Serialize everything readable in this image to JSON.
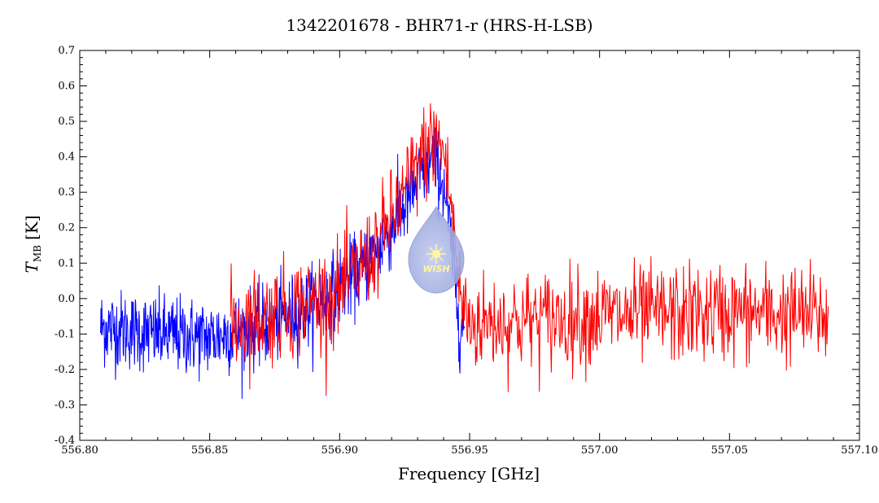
{
  "chart_data": {
    "type": "line",
    "title": "1342201678 - BHR71-r (HRS-H-LSB)",
    "xlabel": "Frequency [GHz]",
    "ylabel_main": "T",
    "ylabel_sub": "MB",
    "ylabel_unit": "[K]",
    "xlim": [
      556.8,
      557.1
    ],
    "ylim": [
      -0.4,
      0.7
    ],
    "xticks": [
      556.8,
      556.85,
      556.9,
      556.95,
      557.0,
      557.05,
      557.1
    ],
    "xtick_labels": [
      "556.80",
      "556.85",
      "556.90",
      "556.95",
      "557.00",
      "557.05",
      "557.10"
    ],
    "yticks": [
      -0.4,
      -0.3,
      -0.2,
      -0.1,
      0.0,
      0.1,
      0.2,
      0.3,
      0.4,
      0.5,
      0.6,
      0.7
    ],
    "ytick_labels": [
      "-0.4",
      "-0.3",
      "-0.2",
      "-0.1",
      "0.0",
      "0.1",
      "0.2",
      "0.3",
      "0.4",
      "0.5",
      "0.6",
      "0.7"
    ],
    "grid": false,
    "legend": "none",
    "logo_text": "WISH",
    "series": [
      {
        "color": "#0000ff",
        "x_range": [
          556.808,
          556.948
        ],
        "envelope": [
          {
            "x": 556.808,
            "y": -0.08
          },
          {
            "x": 556.83,
            "y": -0.1
          },
          {
            "x": 556.85,
            "y": -0.11
          },
          {
            "x": 556.87,
            "y": -0.08
          },
          {
            "x": 556.89,
            "y": -0.02
          },
          {
            "x": 556.905,
            "y": 0.06
          },
          {
            "x": 556.915,
            "y": 0.14
          },
          {
            "x": 556.925,
            "y": 0.26
          },
          {
            "x": 556.932,
            "y": 0.36
          },
          {
            "x": 556.937,
            "y": 0.4
          },
          {
            "x": 556.941,
            "y": 0.28
          },
          {
            "x": 556.944,
            "y": 0.08
          },
          {
            "x": 556.946,
            "y": -0.07
          },
          {
            "x": 556.948,
            "y": -0.08
          }
        ],
        "noise": 0.055
      },
      {
        "color": "#ff0000",
        "x_range": [
          556.858,
          557.088
        ],
        "envelope": [
          {
            "x": 556.858,
            "y": -0.07
          },
          {
            "x": 556.88,
            "y": -0.03
          },
          {
            "x": 556.9,
            "y": 0.02
          },
          {
            "x": 556.912,
            "y": 0.12
          },
          {
            "x": 556.922,
            "y": 0.25
          },
          {
            "x": 556.93,
            "y": 0.38
          },
          {
            "x": 556.936,
            "y": 0.45
          },
          {
            "x": 556.94,
            "y": 0.42
          },
          {
            "x": 556.944,
            "y": 0.2
          },
          {
            "x": 556.946,
            "y": 0.02
          },
          {
            "x": 556.95,
            "y": -0.07
          },
          {
            "x": 557.0,
            "y": -0.05
          },
          {
            "x": 557.05,
            "y": -0.04
          },
          {
            "x": 557.088,
            "y": -0.05
          }
        ],
        "noise": 0.07
      }
    ]
  }
}
